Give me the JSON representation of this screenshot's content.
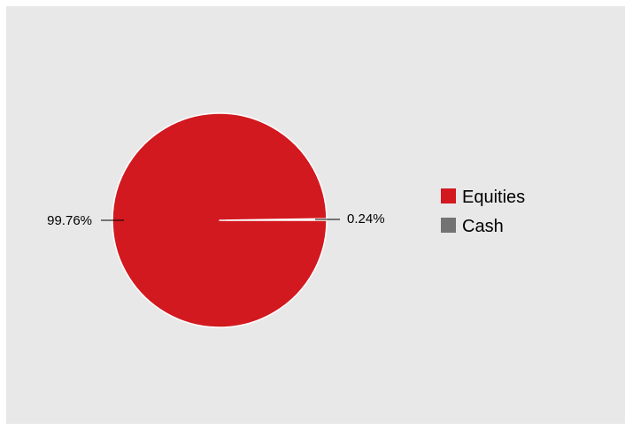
{
  "chart_data": {
    "type": "pie",
    "title": "",
    "slices": [
      {
        "name": "Equities",
        "value": 99.76,
        "label": "99.76%",
        "color": "#d2191f"
      },
      {
        "name": "Cash",
        "value": 0.24,
        "label": "0.24%",
        "color": "#737373"
      }
    ],
    "legend": {
      "position": "right",
      "entries": [
        "Equities",
        "Cash"
      ]
    },
    "background_color": "#e8e8e8"
  }
}
